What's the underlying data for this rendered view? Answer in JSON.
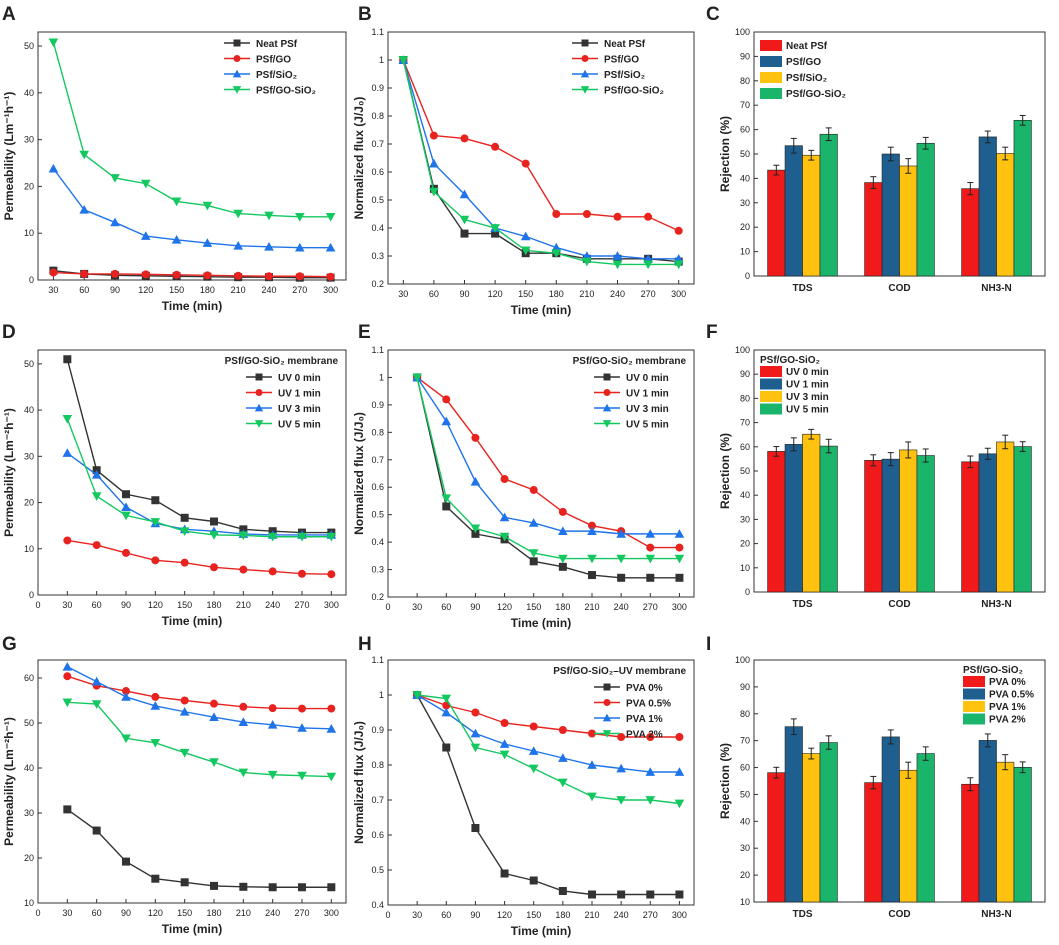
{
  "colors": {
    "black": "#333333",
    "red": "#e8231f",
    "blue": "#1f74ea",
    "green": "#14c860",
    "bar_red": "#f11a1a",
    "bar_blue": "#1e5f8f",
    "bar_yellow": "#ffc20e",
    "bar_green": "#1bb46b"
  },
  "chart_data": [
    {
      "id": "A",
      "type": "line",
      "letter": "A",
      "xlabel": "Time (min)",
      "ylabel": "Permeability (Lm⁻¹h⁻¹)",
      "xlim": [
        15,
        315
      ],
      "ylim": [
        0,
        53
      ],
      "xticks": [
        30,
        60,
        90,
        120,
        150,
        180,
        210,
        240,
        270,
        300
      ],
      "yticks": [
        0,
        10,
        20,
        30,
        40,
        50
      ],
      "legend_title": "",
      "legend_position": "top-right",
      "series": [
        {
          "name": "Neat PSf",
          "color": "#333333",
          "marker": "square",
          "values": [
            2.0,
            1.3,
            1.0,
            0.9,
            0.8,
            0.7,
            0.6,
            0.6,
            0.5,
            0.5
          ]
        },
        {
          "name": "PSf/GO",
          "color": "#e8231f",
          "marker": "circle",
          "values": [
            1.6,
            1.3,
            1.3,
            1.2,
            1.1,
            1.0,
            0.9,
            0.8,
            0.8,
            0.7
          ]
        },
        {
          "name": "PSf/SiO₂",
          "color": "#1f74ea",
          "marker": "triangle-up",
          "values": [
            23.8,
            15.0,
            12.3,
            9.4,
            8.6,
            7.9,
            7.3,
            7.1,
            6.9,
            6.9
          ]
        },
        {
          "name": "PSf/GO-SiO₂",
          "color": "#14c860",
          "marker": "triangle-down",
          "values": [
            50.8,
            26.8,
            21.8,
            20.6,
            16.8,
            15.9,
            14.2,
            13.8,
            13.5,
            13.5
          ]
        }
      ]
    },
    {
      "id": "B",
      "type": "line",
      "letter": "B",
      "xlabel": "Time (min)",
      "ylabel": "Normalized flux (J/J₀)",
      "xlim": [
        15,
        315
      ],
      "ylim": [
        0.2,
        1.1
      ],
      "xticks": [
        30,
        60,
        90,
        120,
        150,
        180,
        210,
        240,
        270,
        300
      ],
      "yticks": [
        0.2,
        0.3,
        0.4,
        0.5,
        0.6,
        0.7,
        0.8,
        0.9,
        1.0,
        1.1
      ],
      "legend_title": "",
      "legend_position": "top-right",
      "series": [
        {
          "name": "Neat PSf",
          "color": "#333333",
          "marker": "square",
          "values": [
            1.0,
            0.54,
            0.38,
            0.38,
            0.31,
            0.31,
            0.29,
            0.29,
            0.29,
            0.28
          ]
        },
        {
          "name": "PSf/GO",
          "color": "#e8231f",
          "marker": "circle",
          "values": [
            1.0,
            0.73,
            0.72,
            0.69,
            0.63,
            0.45,
            0.45,
            0.44,
            0.44,
            0.39
          ]
        },
        {
          "name": "PSf/SiO₂",
          "color": "#1f74ea",
          "marker": "triangle-up",
          "values": [
            1.0,
            0.63,
            0.52,
            0.4,
            0.37,
            0.33,
            0.3,
            0.3,
            0.29,
            0.29
          ]
        },
        {
          "name": "PSf/GO-SiO₂",
          "color": "#14c860",
          "marker": "triangle-down",
          "values": [
            1.0,
            0.53,
            0.43,
            0.4,
            0.32,
            0.31,
            0.28,
            0.27,
            0.27,
            0.27
          ]
        }
      ]
    },
    {
      "id": "C",
      "type": "bar",
      "letter": "C",
      "xlabel": "",
      "ylabel": "Rejection (%)",
      "ylim": [
        0,
        100
      ],
      "yticks": [
        0,
        10,
        20,
        30,
        40,
        50,
        60,
        70,
        80,
        90,
        100
      ],
      "categories": [
        "TDS",
        "COD",
        "NH3-N"
      ],
      "legend_title": "",
      "legend_position": "top-left",
      "series": [
        {
          "name": "Neat PSf",
          "color": "#f11a1a",
          "values": [
            43.4,
            38.3,
            35.8
          ],
          "errors": [
            2.0,
            2.4,
            2.5
          ]
        },
        {
          "name": "PSf/GO",
          "color": "#1e5f8f",
          "values": [
            53.4,
            50.0,
            57.0
          ],
          "errors": [
            3.0,
            2.8,
            2.4
          ]
        },
        {
          "name": "PSf/SiO₂",
          "color": "#ffc20e",
          "values": [
            49.5,
            45.1,
            50.2
          ],
          "errors": [
            2.0,
            3.0,
            2.6
          ]
        },
        {
          "name": "PSf/GO-SiO₂",
          "color": "#1bb46b",
          "values": [
            58.1,
            54.4,
            63.8
          ],
          "errors": [
            2.6,
            2.4,
            2.0
          ]
        }
      ]
    },
    {
      "id": "D",
      "type": "line",
      "letter": "D",
      "xlabel": "Time (min)",
      "ylabel": "Permeability (Lm⁻²h⁻¹)",
      "xlim": [
        0,
        315
      ],
      "ylim": [
        0,
        53
      ],
      "xticks": [
        0,
        30,
        60,
        90,
        120,
        150,
        180,
        210,
        240,
        270,
        300
      ],
      "yticks": [
        0,
        10,
        20,
        30,
        40,
        50
      ],
      "legend_title": "PSf/GO-SiO₂ membrane",
      "legend_position": "top-right",
      "series": [
        {
          "name": "UV 0 min",
          "color": "#333333",
          "marker": "square",
          "values": [
            51.0,
            27.0,
            21.8,
            20.5,
            16.7,
            15.9,
            14.2,
            13.8,
            13.5,
            13.5
          ]
        },
        {
          "name": "UV 1 min",
          "color": "#e8231f",
          "marker": "circle",
          "values": [
            11.8,
            10.8,
            9.1,
            7.5,
            7.0,
            6.0,
            5.5,
            5.1,
            4.6,
            4.5
          ]
        },
        {
          "name": "UV 3 min",
          "color": "#1f74ea",
          "marker": "triangle-up",
          "values": [
            30.7,
            26.0,
            19.0,
            15.5,
            14.2,
            13.8,
            13.2,
            13.0,
            13.0,
            13.0
          ]
        },
        {
          "name": "UV 5 min",
          "color": "#14c860",
          "marker": "triangle-down",
          "values": [
            38.1,
            21.4,
            17.2,
            15.8,
            13.8,
            13.0,
            12.9,
            12.6,
            12.6,
            12.6
          ]
        }
      ]
    },
    {
      "id": "E",
      "type": "line",
      "letter": "E",
      "xlabel": "Time (min)",
      "ylabel": "Normalized flux (J/J₀)",
      "xlim": [
        0,
        315
      ],
      "ylim": [
        0.2,
        1.1
      ],
      "xticks": [
        0,
        30,
        60,
        90,
        120,
        150,
        180,
        210,
        240,
        270,
        300
      ],
      "yticks": [
        0.2,
        0.3,
        0.4,
        0.5,
        0.6,
        0.7,
        0.8,
        0.9,
        1.0,
        1.1
      ],
      "legend_title": "PSf/GO-SiO₂ membrane",
      "legend_position": "top-right",
      "series": [
        {
          "name": "UV 0 min",
          "color": "#333333",
          "marker": "square",
          "values": [
            1.0,
            0.53,
            0.43,
            0.41,
            0.33,
            0.31,
            0.28,
            0.27,
            0.27,
            0.27
          ]
        },
        {
          "name": "UV 1 min",
          "color": "#e8231f",
          "marker": "circle",
          "values": [
            1.0,
            0.92,
            0.78,
            0.63,
            0.59,
            0.51,
            0.46,
            0.44,
            0.38,
            0.38
          ]
        },
        {
          "name": "UV 3 min",
          "color": "#1f74ea",
          "marker": "triangle-up",
          "values": [
            1.0,
            0.84,
            0.62,
            0.49,
            0.47,
            0.44,
            0.44,
            0.43,
            0.43,
            0.43
          ]
        },
        {
          "name": "UV 5 min",
          "color": "#14c860",
          "marker": "triangle-down",
          "values": [
            1.0,
            0.56,
            0.45,
            0.42,
            0.36,
            0.34,
            0.34,
            0.34,
            0.34,
            0.34
          ]
        }
      ]
    },
    {
      "id": "F",
      "type": "bar",
      "letter": "F",
      "xlabel": "",
      "ylabel": "Rejection (%)",
      "ylim": [
        0,
        100
      ],
      "yticks": [
        0,
        10,
        20,
        30,
        40,
        50,
        60,
        70,
        80,
        90,
        100
      ],
      "categories": [
        "TDS",
        "COD",
        "NH3-N"
      ],
      "legend_title": "PSf/GO-SiO₂",
      "legend_position": "top-left",
      "series": [
        {
          "name": "UV 0 min",
          "color": "#f11a1a",
          "values": [
            58.1,
            54.4,
            53.8
          ],
          "errors": [
            2.0,
            2.3,
            2.4
          ]
        },
        {
          "name": "UV 1 min",
          "color": "#1e5f8f",
          "values": [
            61.0,
            54.9,
            57.1
          ],
          "errors": [
            2.7,
            2.7,
            2.3
          ]
        },
        {
          "name": "UV 3 min",
          "color": "#ffc20e",
          "values": [
            65.2,
            58.7,
            62.0
          ],
          "errors": [
            2.0,
            3.3,
            2.8
          ]
        },
        {
          "name": "UV 5 min",
          "color": "#1bb46b",
          "values": [
            60.3,
            56.4,
            60.1
          ],
          "errors": [
            2.8,
            2.7,
            2.0
          ]
        }
      ]
    },
    {
      "id": "G",
      "type": "line",
      "letter": "G",
      "xlabel": "Time (min)",
      "ylabel": "Permeability (Lm⁻²h⁻¹)",
      "xlim": [
        0,
        315
      ],
      "ylim": [
        10,
        64
      ],
      "xticks": [
        0,
        30,
        60,
        90,
        120,
        150,
        180,
        210,
        240,
        270,
        300
      ],
      "yticks": [
        10,
        20,
        30,
        40,
        50,
        60
      ],
      "legend_title": "",
      "legend_position": "none",
      "series": [
        {
          "name": "PVA 0%",
          "color": "#333333",
          "marker": "square",
          "values": [
            30.8,
            26.1,
            19.2,
            15.4,
            14.6,
            13.8,
            13.6,
            13.5,
            13.5,
            13.5
          ]
        },
        {
          "name": "PVA 0.5%",
          "color": "#e8231f",
          "marker": "circle",
          "values": [
            60.4,
            58.3,
            57.1,
            55.8,
            55.0,
            54.3,
            53.6,
            53.3,
            53.2,
            53.2
          ]
        },
        {
          "name": "PVA 1%",
          "color": "#1f74ea",
          "marker": "triangle-up",
          "values": [
            62.5,
            59.2,
            55.8,
            53.8,
            52.5,
            51.3,
            50.2,
            49.6,
            48.9,
            48.7
          ]
        },
        {
          "name": "PVA 2%",
          "color": "#14c860",
          "marker": "triangle-down",
          "values": [
            54.6,
            54.2,
            46.6,
            45.6,
            43.4,
            41.3,
            39.0,
            38.5,
            38.3,
            38.1
          ]
        }
      ]
    },
    {
      "id": "H",
      "type": "line",
      "letter": "H",
      "xlabel": "Time (min)",
      "ylabel": "Normalized flux (J/J₀)",
      "xlim": [
        0,
        315
      ],
      "ylim": [
        0.4,
        1.1
      ],
      "xticks": [
        0,
        30,
        60,
        90,
        120,
        150,
        180,
        210,
        240,
        270,
        300
      ],
      "yticks": [
        0.4,
        0.5,
        0.6,
        0.7,
        0.8,
        0.9,
        1.0,
        1.1
      ],
      "legend_title": "PSf/GO-SiO₂–UV membrane",
      "legend_position": "top-right",
      "series": [
        {
          "name": "PVA 0%",
          "color": "#333333",
          "marker": "square",
          "values": [
            1.0,
            0.85,
            0.62,
            0.49,
            0.47,
            0.44,
            0.43,
            0.43,
            0.43,
            0.43
          ]
        },
        {
          "name": "PVA 0.5%",
          "color": "#e8231f",
          "marker": "circle",
          "values": [
            1.0,
            0.97,
            0.95,
            0.92,
            0.91,
            0.9,
            0.89,
            0.88,
            0.88,
            0.88
          ]
        },
        {
          "name": "PVA 1%",
          "color": "#1f74ea",
          "marker": "triangle-up",
          "values": [
            1.0,
            0.95,
            0.89,
            0.86,
            0.84,
            0.82,
            0.8,
            0.79,
            0.78,
            0.78
          ]
        },
        {
          "name": "PVA 2%",
          "color": "#14c860",
          "marker": "triangle-down",
          "values": [
            1.0,
            0.99,
            0.85,
            0.83,
            0.79,
            0.75,
            0.71,
            0.7,
            0.7,
            0.69
          ]
        }
      ]
    },
    {
      "id": "I",
      "type": "bar",
      "letter": "I",
      "xlabel": "",
      "ylabel": "Rejection (%)",
      "ylim": [
        10,
        100
      ],
      "yticks": [
        10,
        20,
        30,
        40,
        50,
        60,
        70,
        80,
        90,
        100
      ],
      "categories": [
        "TDS",
        "COD",
        "NH3-N"
      ],
      "legend_title": "PSf/GO-SiO₂",
      "legend_position": "top-right",
      "series": [
        {
          "name": "PVA 0%",
          "color": "#f11a1a",
          "values": [
            58.1,
            54.4,
            53.8
          ],
          "errors": [
            2.0,
            2.3,
            2.4
          ]
        },
        {
          "name": "PVA 0.5%",
          "color": "#1e5f8f",
          "values": [
            75.2,
            71.4,
            70.1
          ],
          "errors": [
            2.9,
            2.6,
            2.4
          ]
        },
        {
          "name": "PVA 1%",
          "color": "#ffc20e",
          "values": [
            65.2,
            59.0,
            62.0
          ],
          "errors": [
            2.0,
            3.0,
            2.8
          ]
        },
        {
          "name": "PVA 2%",
          "color": "#1bb46b",
          "values": [
            69.3,
            65.2,
            60.1
          ],
          "errors": [
            2.5,
            2.5,
            2.0
          ]
        }
      ]
    }
  ]
}
